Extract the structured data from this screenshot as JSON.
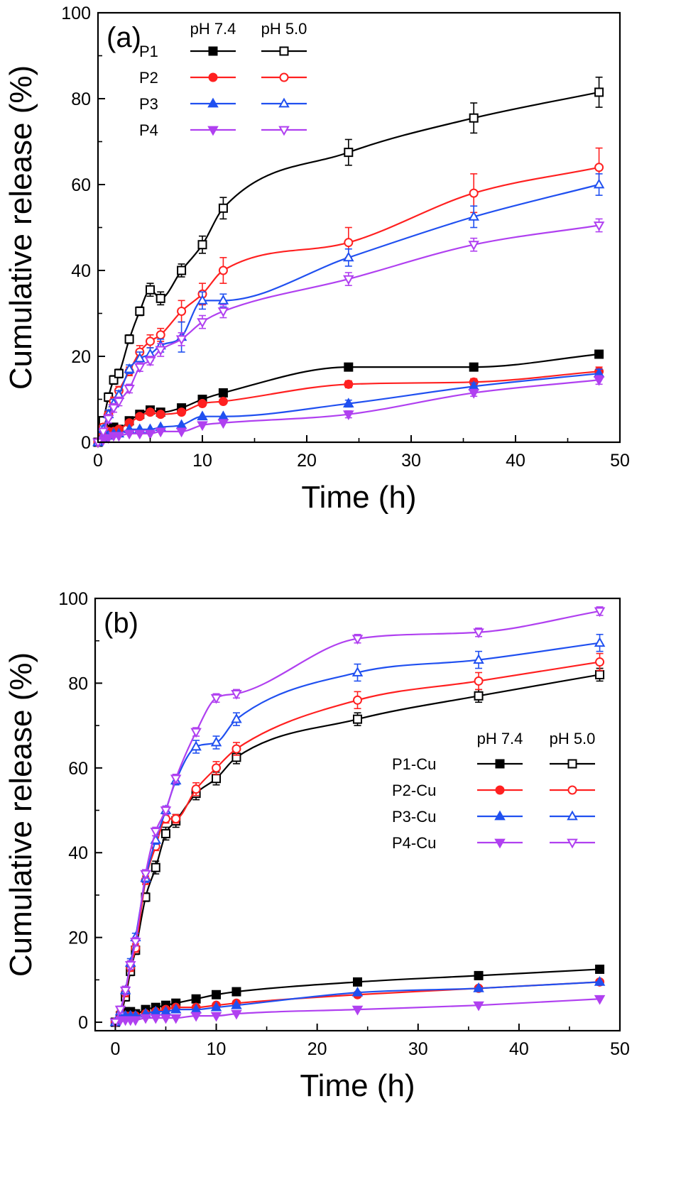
{
  "chart_data": [
    {
      "type": "line",
      "panel_label": "(a)",
      "xlabel": "Time (h)",
      "ylabel": "Cumulative release (%)",
      "xlim": [
        0,
        50
      ],
      "ylim": [
        0,
        100
      ],
      "xticks": [
        "0",
        "10",
        "20",
        "30",
        "40",
        "50"
      ],
      "yticks": [
        "0",
        "20",
        "40",
        "60",
        "80",
        "100"
      ],
      "legend_position": "top-left",
      "legend_headers": [
        "pH 7.4",
        "pH 5.0"
      ],
      "legend_labels": [
        "P1",
        "P2",
        "P3",
        "P4"
      ],
      "x": [
        0,
        0.5,
        1,
        1.5,
        2,
        3,
        4,
        5,
        6,
        8,
        10,
        12,
        24,
        36,
        48
      ],
      "series": [
        {
          "group": "P1",
          "ph": "pH 7.4",
          "color": "#000000",
          "marker": "square",
          "filled": true,
          "values": [
            0,
            5,
            3,
            3.5,
            3,
            5,
            6.5,
            7.5,
            7,
            8,
            10,
            11.5,
            17.5,
            17.5,
            20.5
          ],
          "errors": [
            0,
            0.5,
            0.5,
            0.5,
            0.5,
            0.5,
            0.5,
            0.5,
            0.5,
            0.5,
            0.5,
            0.5,
            0.8,
            0.8,
            0.8
          ]
        },
        {
          "group": "P1",
          "ph": "pH 5.0",
          "color": "#000000",
          "marker": "square",
          "filled": false,
          "values": [
            0,
            5,
            10.5,
            14.5,
            16,
            24,
            30.5,
            35.5,
            33.5,
            40,
            46,
            54.5,
            67.5,
            75.5,
            81.5
          ],
          "errors": [
            0,
            0.8,
            1,
            1,
            1,
            1,
            1,
            1.5,
            1.5,
            1.5,
            2,
            2.5,
            3,
            3.5,
            3.5
          ]
        },
        {
          "group": "P2",
          "ph": "pH 7.4",
          "color": "#ff2020",
          "marker": "circle",
          "filled": true,
          "values": [
            0,
            2,
            2.5,
            2.5,
            3,
            4.5,
            6,
            7,
            6.5,
            7,
            9,
            9.5,
            13.5,
            14,
            16.5
          ],
          "errors": [
            0,
            0.5,
            0.5,
            0.5,
            0.5,
            0.5,
            0.5,
            0.5,
            0.5,
            0.5,
            0.5,
            0.5,
            0.8,
            0.8,
            1
          ]
        },
        {
          "group": "P2",
          "ph": "pH 5.0",
          "color": "#ff2020",
          "marker": "circle",
          "filled": false,
          "values": [
            0,
            3.5,
            6.5,
            9.5,
            12,
            16.5,
            21,
            23.5,
            25,
            30.5,
            34.5,
            40,
            46.5,
            58,
            64
          ],
          "errors": [
            0,
            0.8,
            1,
            1,
            1,
            1,
            1.5,
            1.5,
            1.5,
            2.5,
            2.5,
            3,
            3.5,
            4.5,
            4.5
          ]
        },
        {
          "group": "P3",
          "ph": "pH 7.4",
          "color": "#2050f0",
          "marker": "triangle-up",
          "filled": true,
          "values": [
            0,
            1,
            1.5,
            2,
            2,
            3,
            3,
            3,
            3.5,
            4,
            6,
            6,
            9,
            13,
            16
          ],
          "errors": [
            0,
            0.5,
            0.5,
            0.5,
            0.5,
            0.5,
            0.5,
            0.5,
            0.5,
            0.5,
            0.5,
            0.5,
            0.8,
            0.8,
            1
          ]
        },
        {
          "group": "P3",
          "ph": "pH 5.0",
          "color": "#2050f0",
          "marker": "triangle-up",
          "filled": false,
          "values": [
            0,
            3,
            6.5,
            9,
            11,
            17,
            19.5,
            20.5,
            22.5,
            24.5,
            33,
            33,
            43,
            52.5,
            60
          ],
          "errors": [
            0,
            0.8,
            1,
            1,
            1,
            1,
            1.5,
            1.5,
            1.5,
            3.5,
            2,
            1.5,
            2,
            2.5,
            2.5
          ]
        },
        {
          "group": "P4",
          "ph": "pH 7.4",
          "color": "#b040f0",
          "marker": "triangle-down",
          "filled": true,
          "values": [
            0,
            0.5,
            1,
            1.5,
            1.5,
            2,
            2,
            2,
            2.5,
            2.5,
            4,
            4.5,
            6.5,
            11.5,
            14.5
          ],
          "errors": [
            0,
            0.5,
            0.5,
            0.5,
            0.5,
            0.5,
            0.5,
            0.5,
            0.5,
            0.5,
            0.5,
            0.5,
            0.8,
            0.8,
            1
          ]
        },
        {
          "group": "P4",
          "ph": "pH 5.0",
          "color": "#b040f0",
          "marker": "triangle-down",
          "filled": false,
          "values": [
            0,
            2.5,
            5.5,
            8,
            9.5,
            12.5,
            17.5,
            19,
            21.5,
            24,
            28,
            30.5,
            38,
            46,
            50.5
          ],
          "errors": [
            0,
            0.8,
            1,
            1,
            1,
            1,
            1,
            1,
            1.5,
            1.5,
            1.5,
            1.5,
            1.5,
            1.5,
            1.5
          ]
        }
      ]
    },
    {
      "type": "line",
      "panel_label": "(b)",
      "xlabel": "Time (h)",
      "ylabel": "Cumulative release (%)",
      "xlim": [
        -2,
        50
      ],
      "ylim": [
        -2,
        100
      ],
      "xticks": [
        "0",
        "10",
        "20",
        "30",
        "40",
        "50"
      ],
      "yticks": [
        "0",
        "20",
        "40",
        "60",
        "80",
        "100"
      ],
      "legend_position": "center-right",
      "legend_headers": [
        "pH 7.4",
        "pH 5.0"
      ],
      "legend_labels": [
        "P1-Cu",
        "P2-Cu",
        "P3-Cu",
        "P4-Cu"
      ],
      "x": [
        0,
        0.5,
        1,
        1.5,
        2,
        3,
        4,
        5,
        6,
        8,
        10,
        12,
        24,
        36,
        48
      ],
      "series": [
        {
          "group": "P1-Cu",
          "ph": "pH 7.4",
          "color": "#000000",
          "marker": "square",
          "filled": true,
          "values": [
            0,
            1.5,
            2.5,
            2.5,
            2,
            3,
            3.5,
            4,
            4.5,
            5.5,
            6.5,
            7.2,
            9.5,
            11,
            12.5
          ],
          "errors": [
            0,
            0.5,
            0.5,
            0.5,
            0.5,
            0.5,
            0.5,
            0.5,
            0.5,
            0.5,
            0.5,
            0.5,
            0.8,
            0.8,
            0.8
          ]
        },
        {
          "group": "P1-Cu",
          "ph": "pH 5.0",
          "color": "#000000",
          "marker": "square",
          "filled": false,
          "values": [
            0,
            1.5,
            6,
            12,
            17,
            29.5,
            36.5,
            44.5,
            47.5,
            54,
            57.5,
            62.5,
            71.5,
            77,
            82
          ],
          "errors": [
            0,
            0.8,
            1,
            1,
            1,
            1,
            1.5,
            1.5,
            1.5,
            1.5,
            1.5,
            1.5,
            1.5,
            1.5,
            1.5
          ]
        },
        {
          "group": "P2-Cu",
          "ph": "pH 7.4",
          "color": "#ff2020",
          "marker": "circle",
          "filled": true,
          "values": [
            0,
            1,
            1.5,
            1.5,
            1.5,
            2,
            2.5,
            3,
            3.5,
            3.5,
            4,
            4.5,
            6.5,
            8,
            9.5
          ],
          "errors": [
            0,
            0.5,
            0.5,
            0.5,
            0.5,
            0.5,
            0.5,
            0.5,
            0.5,
            0.5,
            0.5,
            0.5,
            0.5,
            0.5,
            0.5
          ]
        },
        {
          "group": "P2-Cu",
          "ph": "pH 5.0",
          "color": "#ff2020",
          "marker": "circle",
          "filled": false,
          "values": [
            0,
            2,
            7,
            13,
            17.5,
            33.5,
            41.5,
            48,
            48,
            55,
            60,
            64.5,
            76,
            80.5,
            85
          ],
          "errors": [
            0,
            0.8,
            1,
            1,
            1,
            1,
            1,
            1,
            1,
            1.5,
            1.5,
            1.5,
            2,
            2,
            2
          ]
        },
        {
          "group": "P3-Cu",
          "ph": "pH 7.4",
          "color": "#2050f0",
          "marker": "triangle-up",
          "filled": true,
          "values": [
            0,
            1,
            1.5,
            1.5,
            1.5,
            2,
            2.5,
            2.5,
            3,
            3,
            3.5,
            4,
            7,
            8,
            9.5
          ],
          "errors": [
            0,
            0.5,
            0.5,
            0.5,
            0.5,
            0.5,
            0.5,
            0.5,
            0.5,
            0.5,
            0.5,
            0.5,
            0.5,
            0.5,
            0.5
          ]
        },
        {
          "group": "P3-Cu",
          "ph": "pH 5.0",
          "color": "#2050f0",
          "marker": "triangle-up",
          "filled": false,
          "values": [
            0,
            2.5,
            7.5,
            14,
            20,
            34,
            43,
            50,
            57,
            65,
            66,
            71.5,
            82.5,
            85.5,
            89.5
          ],
          "errors": [
            0,
            0.8,
            1,
            1,
            1,
            1,
            1,
            1,
            1,
            1.5,
            1.5,
            1.5,
            2,
            2,
            2
          ]
        },
        {
          "group": "P4-Cu",
          "ph": "pH 7.4",
          "color": "#b040f0",
          "marker": "triangle-down",
          "filled": true,
          "values": [
            0,
            0.5,
            0.5,
            0.5,
            0.5,
            1,
            1,
            1,
            1,
            1.5,
            1.5,
            2,
            3,
            4,
            5.5
          ],
          "errors": [
            0,
            0.5,
            0.5,
            0.5,
            0.5,
            0.5,
            0.5,
            0.5,
            0.5,
            0.5,
            0.5,
            0.5,
            0.5,
            0.5,
            0.5
          ]
        },
        {
          "group": "P4-Cu",
          "ph": "pH 5.0",
          "color": "#b040f0",
          "marker": "triangle-down",
          "filled": false,
          "values": [
            0,
            3,
            7.5,
            13.5,
            19,
            35,
            45,
            50,
            57.5,
            68.5,
            76.5,
            77.5,
            90.5,
            92,
            97
          ],
          "errors": [
            0,
            0.8,
            1,
            1,
            1,
            1,
            1,
            1,
            1,
            1,
            1,
            1,
            1,
            1,
            1
          ]
        }
      ]
    }
  ]
}
